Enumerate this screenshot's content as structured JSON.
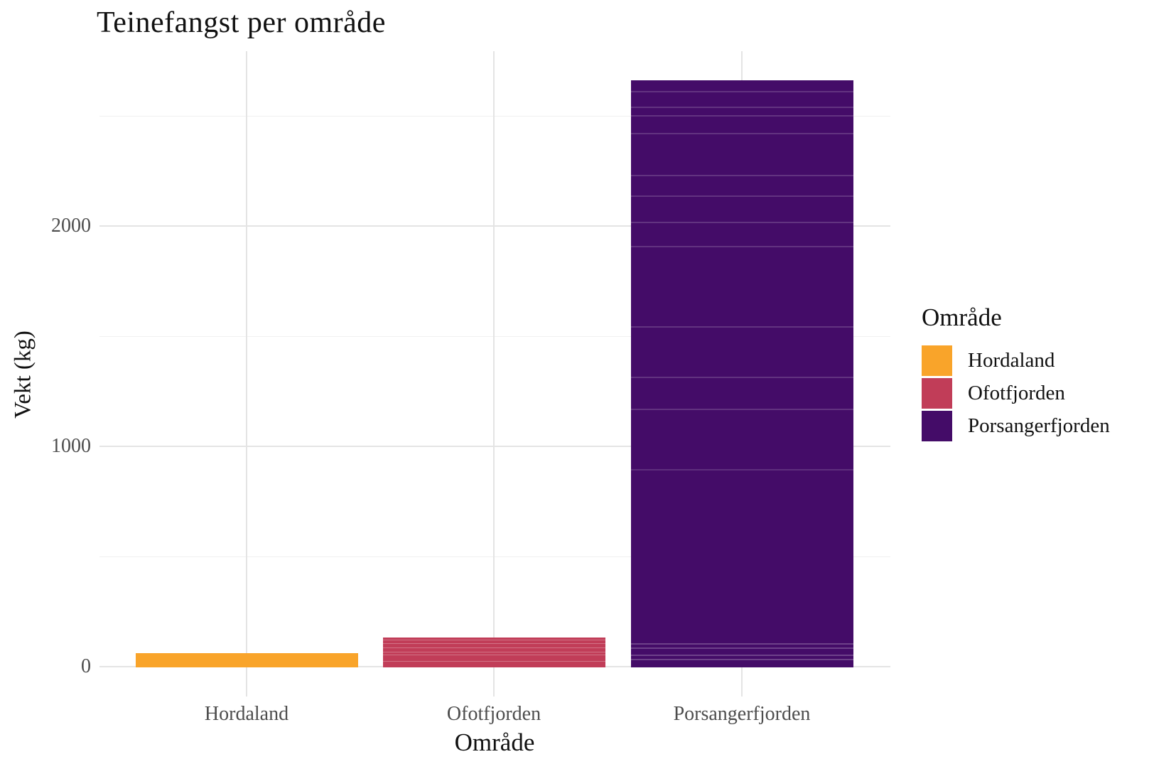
{
  "title": "Teinefangst per område",
  "chart_data": {
    "type": "bar",
    "title": "Teinefangst per område",
    "xlabel": "Område",
    "ylabel": "Vekt (kg)",
    "categories": [
      "Hordaland",
      "Ofotfjorden",
      "Porsangerfjorden"
    ],
    "values": [
      63,
      134,
      2661
    ],
    "unit": "kg",
    "ylim": [
      0,
      2795
    ],
    "yticks": [
      0,
      1000,
      2000
    ],
    "minor_gridlines": [
      500,
      1500,
      2500
    ],
    "grid": true,
    "legend_position": "right",
    "legend_title": "Område",
    "bar_colors": [
      "#f9a42a",
      "#c13d58",
      "#440c68"
    ],
    "background": "#ffffff",
    "gridline_color": "#e4e4e4",
    "tick_label_color": "#4d4d4d"
  },
  "y_axis": {
    "label": "Vekt (kg)",
    "ticks": {
      "t2000": "2000",
      "t1000": "1000",
      "t0": "0"
    }
  },
  "x_axis": {
    "label": "Område"
  },
  "legend": {
    "title": "Område",
    "items": [
      {
        "label": "Hordaland",
        "color": "#f9a42a"
      },
      {
        "label": "Ofotfjorden",
        "color": "#c13d58"
      },
      {
        "label": "Porsangerfjorden",
        "color": "#440c68"
      }
    ]
  }
}
